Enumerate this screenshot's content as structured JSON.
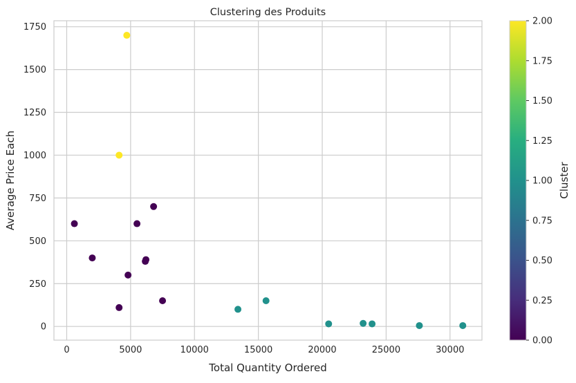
{
  "chart_data": {
    "type": "scatter",
    "title": "Clustering des Produits",
    "xlabel": "Total Quantity Ordered",
    "ylabel": "Average Price Each",
    "xlim": [
      -1000,
      32500
    ],
    "ylim": [
      -80,
      1785
    ],
    "xticks": [
      0,
      5000,
      10000,
      15000,
      20000,
      25000,
      30000
    ],
    "yticks": [
      0,
      250,
      500,
      750,
      1000,
      1250,
      1500,
      1750
    ],
    "grid": true,
    "colormap": "viridis",
    "colorbar": {
      "label": "Cluster",
      "min": 0,
      "max": 2,
      "ticks": [
        "0.00",
        "0.25",
        "0.50",
        "0.75",
        "1.00",
        "1.25",
        "1.50",
        "1.75",
        "2.00"
      ]
    },
    "points": [
      {
        "x": 4700,
        "y": 1700,
        "cluster": 2
      },
      {
        "x": 4100,
        "y": 1000,
        "cluster": 2
      },
      {
        "x": 600,
        "y": 600,
        "cluster": 0
      },
      {
        "x": 2000,
        "y": 400,
        "cluster": 0
      },
      {
        "x": 4100,
        "y": 110,
        "cluster": 0
      },
      {
        "x": 4800,
        "y": 300,
        "cluster": 0
      },
      {
        "x": 5500,
        "y": 600,
        "cluster": 0
      },
      {
        "x": 6200,
        "y": 390,
        "cluster": 0
      },
      {
        "x": 6150,
        "y": 380,
        "cluster": 0
      },
      {
        "x": 6800,
        "y": 700,
        "cluster": 0
      },
      {
        "x": 7500,
        "y": 150,
        "cluster": 0
      },
      {
        "x": 13400,
        "y": 100,
        "cluster": 1
      },
      {
        "x": 15600,
        "y": 150,
        "cluster": 1
      },
      {
        "x": 20500,
        "y": 15,
        "cluster": 1
      },
      {
        "x": 23200,
        "y": 18,
        "cluster": 1
      },
      {
        "x": 23900,
        "y": 15,
        "cluster": 1
      },
      {
        "x": 27600,
        "y": 5,
        "cluster": 1
      },
      {
        "x": 31000,
        "y": 5,
        "cluster": 1
      }
    ]
  }
}
